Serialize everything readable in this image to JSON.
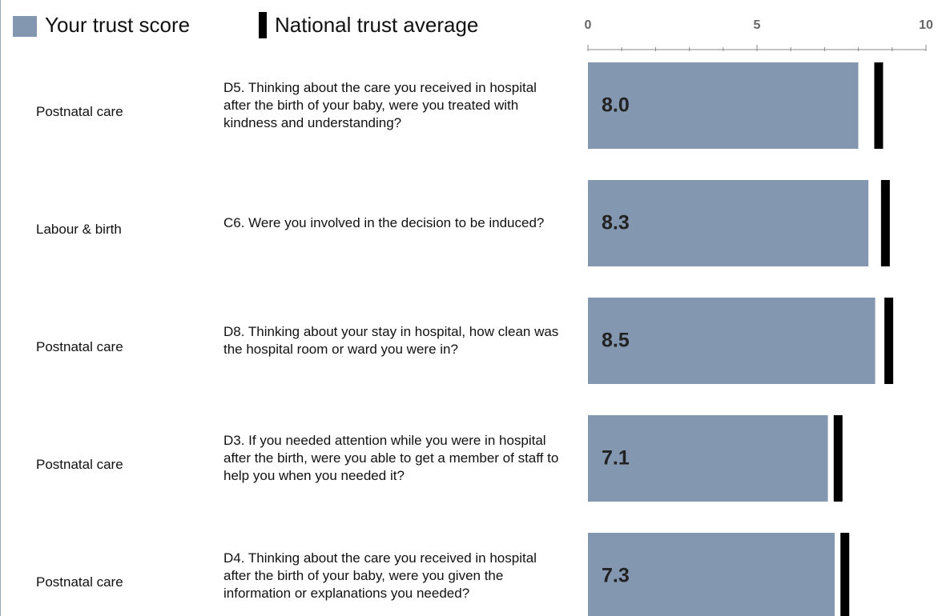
{
  "chart_data": {
    "type": "bar",
    "orientation": "horizontal",
    "sections": [
      "Postnatal care",
      "Labour & birth",
      "Postnatal care",
      "Postnatal care",
      "Postnatal care"
    ],
    "categories": [
      "D5. Thinking about the care you received in hospital after the birth of your baby, were you treated with kindness and understanding?",
      "C6. Were you involved in the decision to be induced?",
      "D8. Thinking about your stay in hospital, how clean was the hospital room or ward you were in?",
      "D3. If you needed attention while you were in hospital after the birth, were you able to get a member of staff to help you when you needed it?",
      "D4. Thinking about the care you received in hospital after the birth of your baby, were you given the information or explanations you needed?"
    ],
    "series": [
      {
        "name": "Your trust score",
        "color": "#8497b0",
        "values": [
          8.0,
          8.3,
          8.5,
          7.1,
          7.3
        ],
        "value_labels": [
          "8.0",
          "8.3",
          "8.5",
          "7.1",
          "7.3"
        ]
      },
      {
        "name": "National trust average",
        "color": "#000000",
        "values": [
          8.6,
          8.8,
          8.9,
          7.4,
          7.6
        ]
      }
    ],
    "xlim": [
      0,
      10
    ],
    "xticks": [
      0,
      5,
      10
    ],
    "xminor_ticks": [
      1,
      2,
      3,
      4,
      6,
      7,
      8,
      9
    ]
  }
}
